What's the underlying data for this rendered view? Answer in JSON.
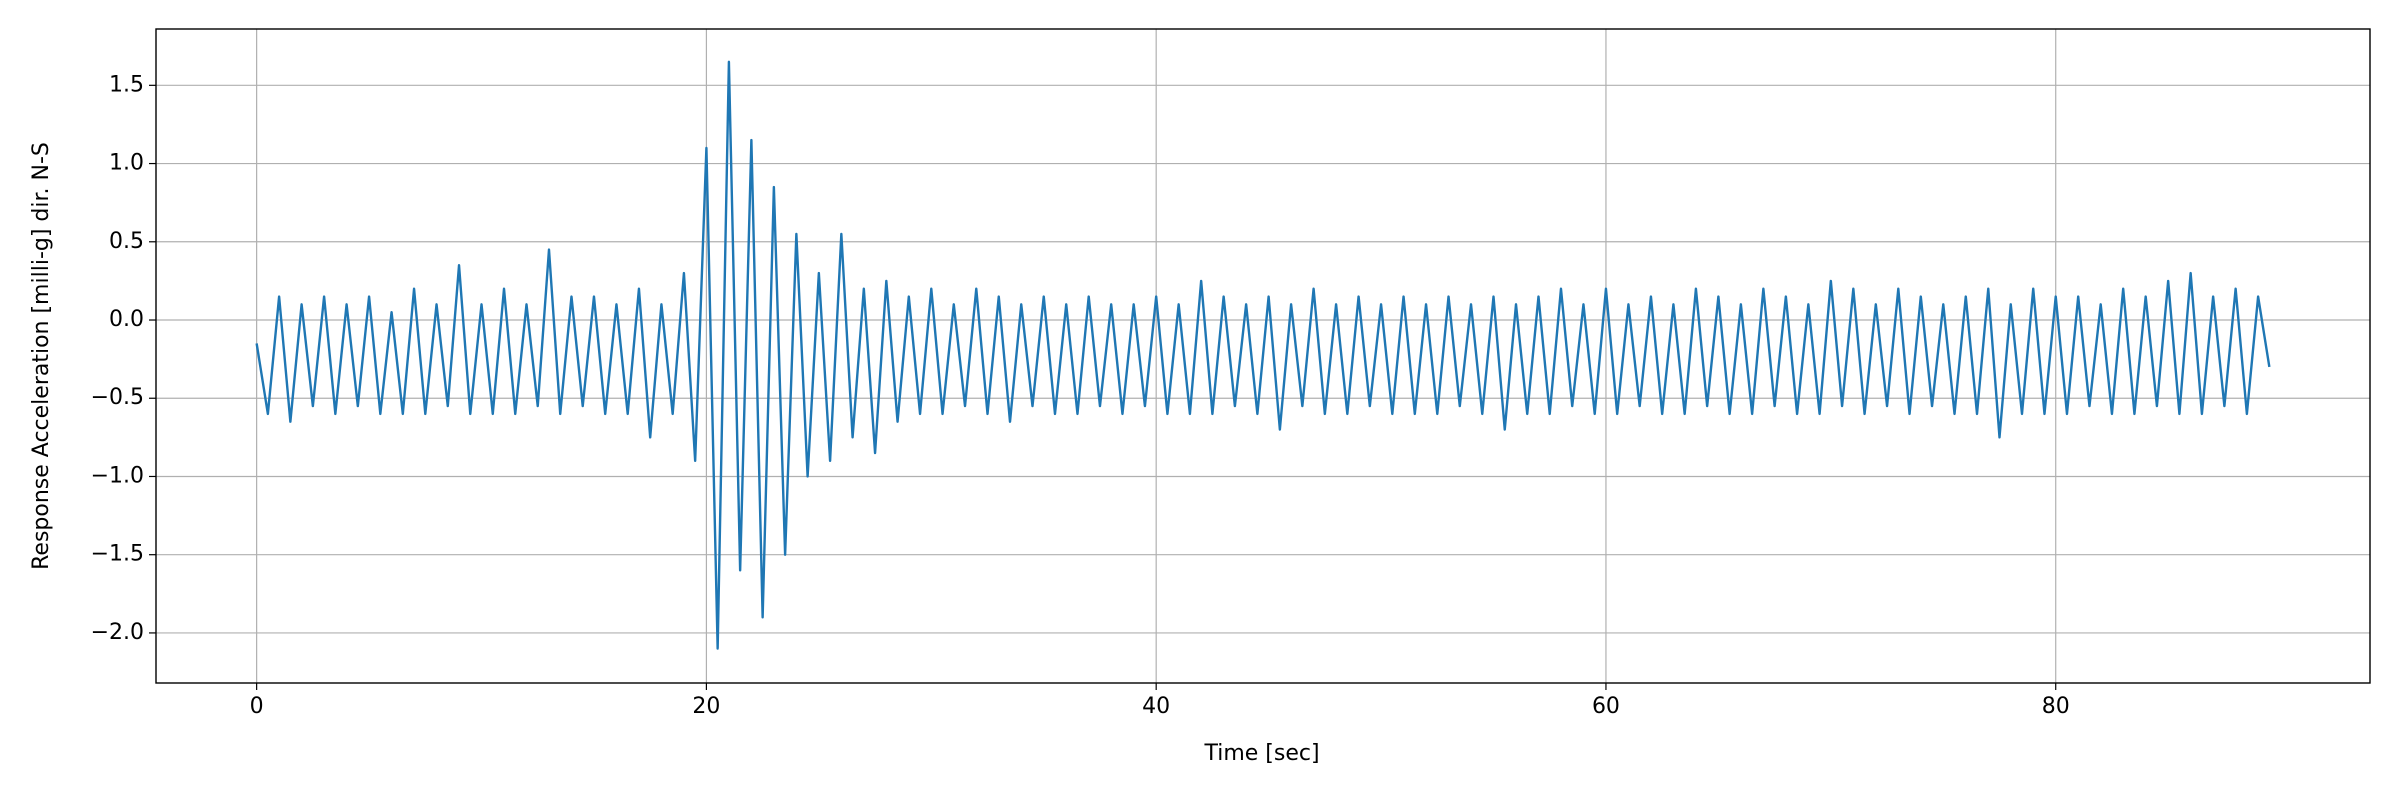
{
  "chart_data": {
    "type": "line",
    "xlabel": "Time [sec]",
    "ylabel": "Response Acceleration [milli-g] dir. N-S",
    "color": "#1f77b4",
    "grid": true,
    "x": [
      0,
      0.5,
      1,
      1.5,
      2,
      2.5,
      3,
      3.5,
      4,
      4.5,
      5,
      5.5,
      6,
      6.5,
      7,
      7.5,
      8,
      8.5,
      9,
      9.5,
      10,
      10.5,
      11,
      11.5,
      12,
      12.5,
      13,
      13.5,
      14,
      14.5,
      15,
      15.5,
      16,
      16.5,
      17,
      17.5,
      18,
      18.5,
      19,
      19.5,
      20,
      20.5,
      21,
      21.5,
      22,
      22.5,
      23,
      23.5,
      24,
      24.5,
      25,
      25.5,
      26,
      26.5,
      27,
      27.5,
      28,
      28.5,
      29,
      29.5,
      30,
      30.5,
      31,
      31.5,
      32,
      32.5,
      33,
      33.5,
      34,
      34.5,
      35,
      35.5,
      36,
      36.5,
      37,
      37.5,
      38,
      38.5,
      39,
      39.5,
      40,
      40.5,
      41,
      41.5,
      42,
      42.5,
      43,
      43.5,
      44,
      44.5,
      45,
      45.5,
      46,
      46.5,
      47,
      47.5,
      48,
      48.5,
      49,
      49.5,
      50,
      50.5,
      51,
      51.5,
      52,
      52.5,
      53,
      53.5,
      54,
      54.5,
      55,
      55.5,
      56,
      56.5,
      57,
      57.5,
      58,
      58.5,
      59,
      59.5,
      60,
      60.5,
      61,
      61.5,
      62,
      62.5,
      63,
      63.5,
      64,
      64.5,
      65,
      65.5,
      66,
      66.5,
      67,
      67.5,
      68,
      68.5,
      69,
      69.5,
      70,
      70.5,
      71,
      71.5,
      72,
      72.5,
      73,
      73.5,
      74,
      74.5,
      75,
      75.5,
      76,
      76.5,
      77,
      77.5,
      78,
      78.5,
      79,
      79.5,
      80,
      80.5,
      81,
      81.5,
      82,
      82.5,
      83,
      83.5,
      84,
      84.5,
      85,
      85.5,
      86,
      86.5,
      87,
      87.5,
      88,
      88.5,
      89,
      89.5
    ],
    "values": [
      -0.15,
      -0.6,
      0.15,
      -0.65,
      0.1,
      -0.55,
      0.15,
      -0.6,
      0.1,
      -0.55,
      0.15,
      -0.6,
      0.05,
      -0.6,
      0.2,
      -0.6,
      0.1,
      -0.55,
      0.35,
      -0.6,
      0.1,
      -0.6,
      0.2,
      -0.6,
      0.1,
      -0.55,
      0.45,
      -0.6,
      0.15,
      -0.55,
      0.15,
      -0.6,
      0.1,
      -0.6,
      0.2,
      -0.75,
      0.1,
      -0.6,
      0.3,
      -0.9,
      1.1,
      -2.1,
      1.65,
      -1.6,
      1.15,
      -1.9,
      0.85,
      -1.5,
      0.55,
      -1.0,
      0.3,
      -0.9,
      0.55,
      -0.75,
      0.2,
      -0.85,
      0.25,
      -0.65,
      0.15,
      -0.6,
      0.2,
      -0.6,
      0.1,
      -0.55,
      0.2,
      -0.6,
      0.15,
      -0.65,
      0.1,
      -0.55,
      0.15,
      -0.6,
      0.1,
      -0.6,
      0.15,
      -0.55,
      0.1,
      -0.6,
      0.1,
      -0.55,
      0.15,
      -0.6,
      0.1,
      -0.6,
      0.25,
      -0.6,
      0.15,
      -0.55,
      0.1,
      -0.6,
      0.15,
      -0.7,
      0.1,
      -0.55,
      0.2,
      -0.6,
      0.1,
      -0.6,
      0.15,
      -0.55,
      0.1,
      -0.6,
      0.15,
      -0.6,
      0.1,
      -0.6,
      0.15,
      -0.55,
      0.1,
      -0.6,
      0.15,
      -0.7,
      0.1,
      -0.6,
      0.15,
      -0.6,
      0.2,
      -0.55,
      0.1,
      -0.6,
      0.2,
      -0.6,
      0.1,
      -0.55,
      0.15,
      -0.6,
      0.1,
      -0.6,
      0.2,
      -0.55,
      0.15,
      -0.6,
      0.1,
      -0.6,
      0.2,
      -0.55,
      0.15,
      -0.6,
      0.1,
      -0.6,
      0.25,
      -0.55,
      0.2,
      -0.6,
      0.1,
      -0.55,
      0.2,
      -0.6,
      0.15,
      -0.55,
      0.1,
      -0.6,
      0.15,
      -0.6,
      0.2,
      -0.75,
      0.1,
      -0.6,
      0.2,
      -0.6,
      0.15,
      -0.6,
      0.15,
      -0.55,
      0.1,
      -0.6,
      0.2,
      -0.6,
      0.15,
      -0.55,
      0.25,
      -0.6,
      0.3,
      -0.6,
      0.15,
      -0.55,
      0.2,
      -0.6,
      0.15,
      -0.3
    ],
    "xlim": [
      -4.475,
      93.975
    ],
    "xticks": [
      0,
      20,
      40,
      60,
      80
    ],
    "ylim": [
      -2.32,
      1.86
    ],
    "yticks": [
      {
        "value": -2.0,
        "label": "−2.0"
      },
      {
        "value": -1.5,
        "label": "−1.5"
      },
      {
        "value": -1.0,
        "label": "−1.0"
      },
      {
        "value": -0.5,
        "label": "−0.5"
      },
      {
        "value": 0.0,
        "label": "0.0"
      },
      {
        "value": 0.5,
        "label": "0.5"
      },
      {
        "value": 1.0,
        "label": "1.0"
      },
      {
        "value": 1.5,
        "label": "1.5"
      }
    ]
  }
}
